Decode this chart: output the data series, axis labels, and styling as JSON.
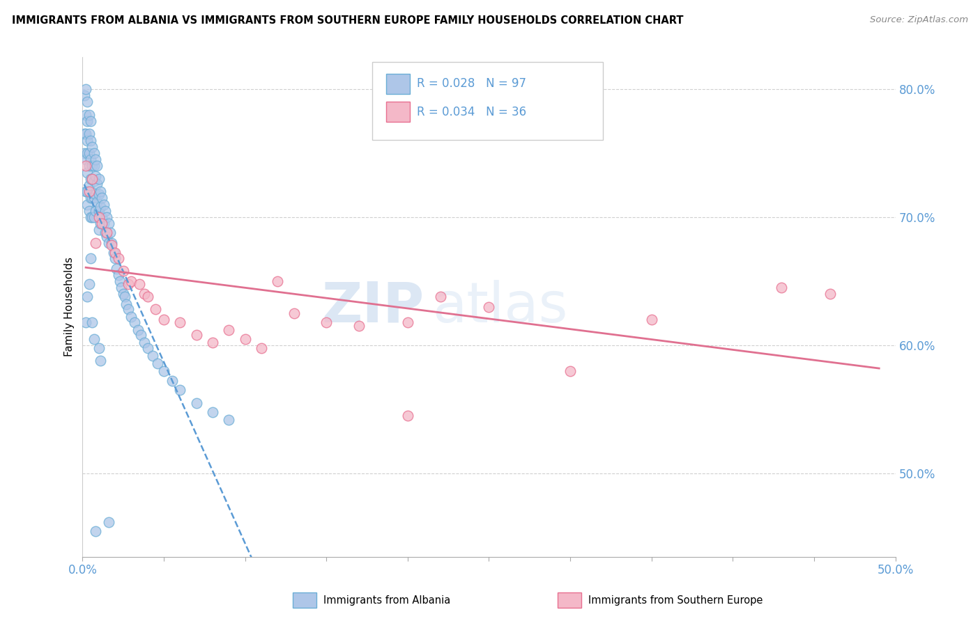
{
  "title": "IMMIGRANTS FROM ALBANIA VS IMMIGRANTS FROM SOUTHERN EUROPE FAMILY HOUSEHOLDS CORRELATION CHART",
  "source": "Source: ZipAtlas.com",
  "ylabel": "Family Households",
  "legend_albania": "Immigrants from Albania",
  "legend_southern": "Immigrants from Southern Europe",
  "r_albania": 0.028,
  "n_albania": 97,
  "r_southern": 0.034,
  "n_southern": 36,
  "xlim": [
    0.0,
    0.5
  ],
  "ylim": [
    0.435,
    0.825
  ],
  "yticks": [
    0.5,
    0.6,
    0.7,
    0.8
  ],
  "ytick_labels": [
    "50.0%",
    "60.0%",
    "70.0%",
    "80.0%"
  ],
  "xticks": [
    0.0,
    0.05,
    0.1,
    0.15,
    0.2,
    0.25,
    0.3,
    0.35,
    0.4,
    0.45,
    0.5
  ],
  "xtick_labels": [
    "0.0%",
    "",
    "",
    "",
    "",
    "",
    "",
    "",
    "",
    "",
    "50.0%"
  ],
  "color_albania": "#aec6e8",
  "color_albania_edge": "#6baed6",
  "color_southern": "#f4b8c8",
  "color_southern_edge": "#e87090",
  "color_trendline_albania": "#5b9bd5",
  "color_trendline_southern": "#e07090",
  "color_axis_labels": "#5b9bd5",
  "watermark_zip": "ZIP",
  "watermark_atlas": "atlas",
  "albania_x": [
    0.001,
    0.001,
    0.001,
    0.002,
    0.002,
    0.002,
    0.002,
    0.002,
    0.003,
    0.003,
    0.003,
    0.003,
    0.003,
    0.003,
    0.003,
    0.004,
    0.004,
    0.004,
    0.004,
    0.004,
    0.004,
    0.005,
    0.005,
    0.005,
    0.005,
    0.005,
    0.005,
    0.006,
    0.006,
    0.006,
    0.006,
    0.006,
    0.007,
    0.007,
    0.007,
    0.007,
    0.007,
    0.008,
    0.008,
    0.008,
    0.008,
    0.009,
    0.009,
    0.009,
    0.01,
    0.01,
    0.01,
    0.01,
    0.011,
    0.011,
    0.011,
    0.012,
    0.012,
    0.013,
    0.013,
    0.014,
    0.014,
    0.015,
    0.015,
    0.016,
    0.016,
    0.017,
    0.018,
    0.019,
    0.02,
    0.021,
    0.022,
    0.023,
    0.024,
    0.025,
    0.026,
    0.027,
    0.028,
    0.03,
    0.032,
    0.034,
    0.036,
    0.038,
    0.04,
    0.043,
    0.046,
    0.05,
    0.055,
    0.06,
    0.07,
    0.08,
    0.09,
    0.01,
    0.011,
    0.005,
    0.003,
    0.004,
    0.002,
    0.006,
    0.007,
    0.008,
    0.016
  ],
  "albania_y": [
    0.795,
    0.765,
    0.75,
    0.8,
    0.78,
    0.765,
    0.745,
    0.72,
    0.79,
    0.775,
    0.76,
    0.75,
    0.735,
    0.72,
    0.71,
    0.78,
    0.765,
    0.75,
    0.74,
    0.725,
    0.705,
    0.775,
    0.76,
    0.745,
    0.73,
    0.715,
    0.7,
    0.755,
    0.74,
    0.73,
    0.715,
    0.7,
    0.75,
    0.74,
    0.728,
    0.715,
    0.7,
    0.745,
    0.732,
    0.718,
    0.705,
    0.74,
    0.726,
    0.712,
    0.73,
    0.718,
    0.705,
    0.69,
    0.72,
    0.708,
    0.695,
    0.715,
    0.7,
    0.71,
    0.695,
    0.705,
    0.688,
    0.7,
    0.685,
    0.695,
    0.68,
    0.688,
    0.68,
    0.672,
    0.668,
    0.66,
    0.655,
    0.65,
    0.645,
    0.64,
    0.638,
    0.632,
    0.628,
    0.622,
    0.618,
    0.612,
    0.608,
    0.602,
    0.598,
    0.592,
    0.586,
    0.58,
    0.572,
    0.565,
    0.555,
    0.548,
    0.542,
    0.598,
    0.588,
    0.668,
    0.638,
    0.648,
    0.618,
    0.618,
    0.605,
    0.455,
    0.462
  ],
  "southern_x": [
    0.002,
    0.004,
    0.006,
    0.008,
    0.01,
    0.012,
    0.015,
    0.018,
    0.02,
    0.022,
    0.025,
    0.028,
    0.03,
    0.035,
    0.038,
    0.04,
    0.045,
    0.05,
    0.06,
    0.07,
    0.08,
    0.09,
    0.1,
    0.11,
    0.13,
    0.15,
    0.17,
    0.2,
    0.2,
    0.22,
    0.25,
    0.3,
    0.35,
    0.43,
    0.46,
    0.12
  ],
  "southern_y": [
    0.74,
    0.72,
    0.73,
    0.68,
    0.7,
    0.695,
    0.688,
    0.678,
    0.672,
    0.668,
    0.658,
    0.648,
    0.65,
    0.648,
    0.64,
    0.638,
    0.628,
    0.62,
    0.618,
    0.608,
    0.602,
    0.612,
    0.605,
    0.598,
    0.625,
    0.618,
    0.615,
    0.545,
    0.618,
    0.638,
    0.63,
    0.58,
    0.62,
    0.645,
    0.64,
    0.65
  ]
}
